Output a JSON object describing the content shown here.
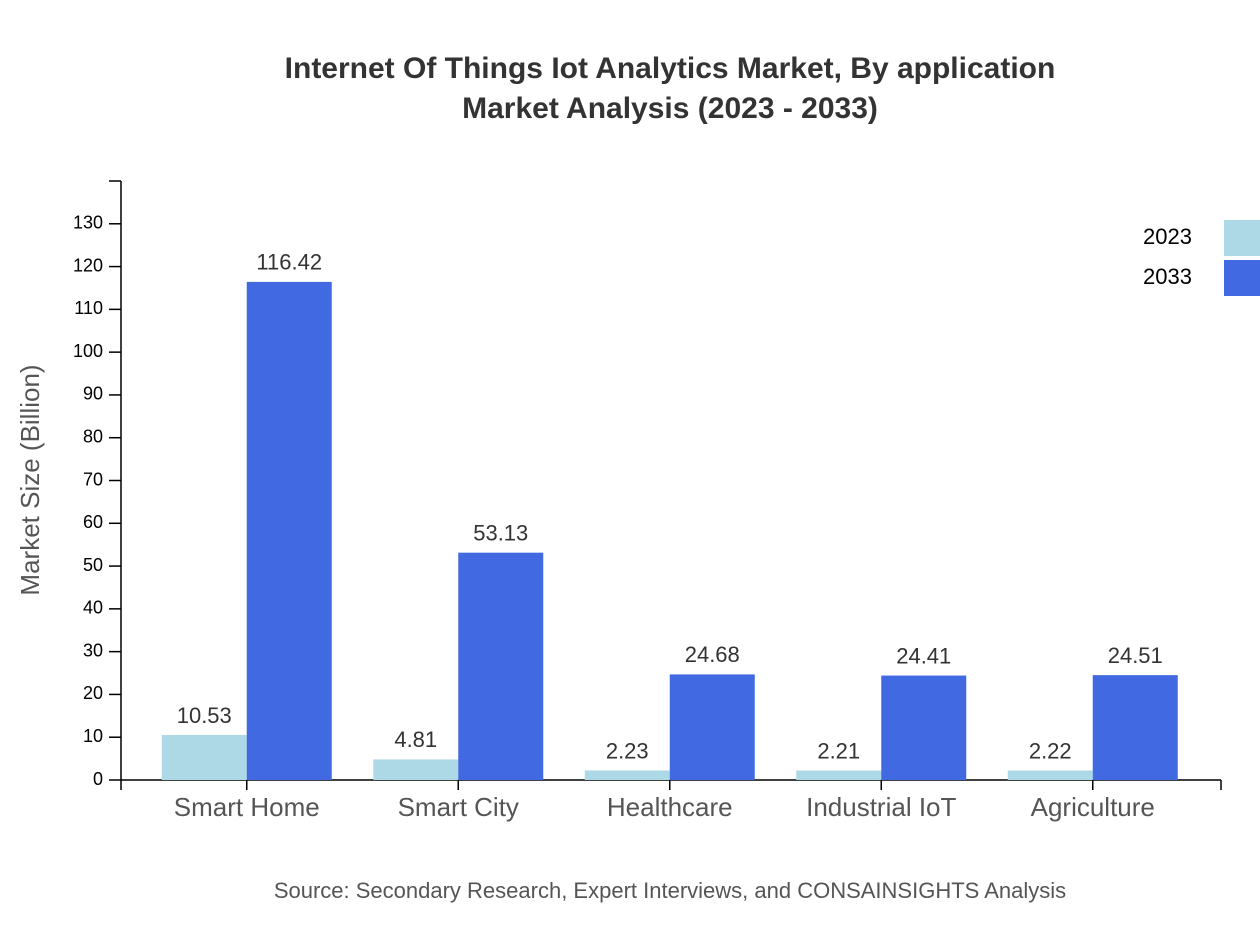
{
  "chart_data": {
    "type": "bar",
    "title": "Internet Of Things Iot Analytics Market, By application",
    "subtitle": "Market Analysis (2023 - 2033)",
    "y_label": "Market Size (Billion)",
    "source": "Source: Secondary Research, Expert Interviews, and CONSAINSIGHTS Analysis",
    "categories": [
      "Smart Home",
      "Smart City",
      "Healthcare",
      "Industrial IoT",
      "Agriculture"
    ],
    "series": [
      {
        "name": "2023",
        "color": "#add8e6",
        "values": [
          10.53,
          4.81,
          2.23,
          2.21,
          2.22
        ]
      },
      {
        "name": "2033",
        "color": "#4169e1",
        "values": [
          116.42,
          53.13,
          24.68,
          24.41,
          24.51
        ]
      }
    ],
    "ylim": [
      0,
      140
    ],
    "yticks": [
      0,
      10,
      20,
      30,
      40,
      50,
      60,
      70,
      80,
      90,
      100,
      110,
      120,
      130
    ],
    "legend": "top-right"
  }
}
